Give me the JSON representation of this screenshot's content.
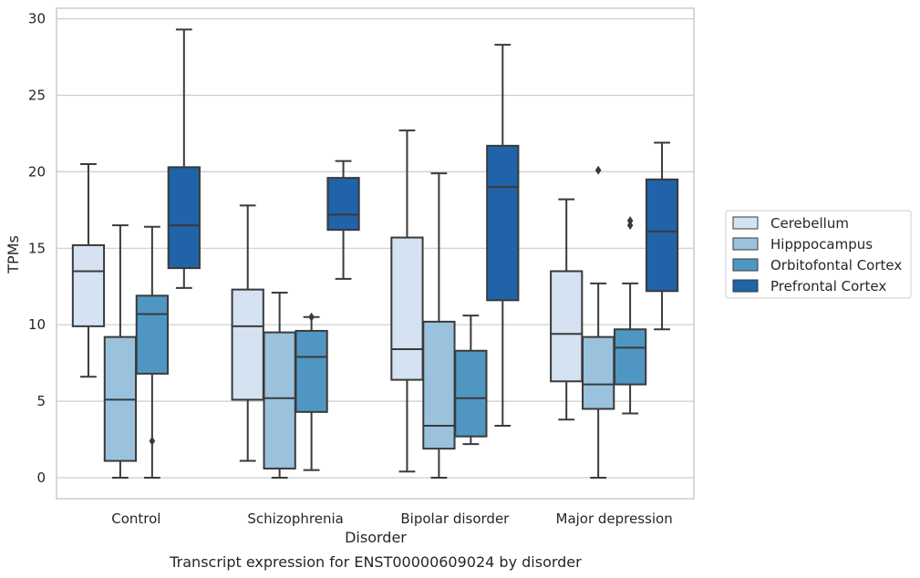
{
  "chart_data": {
    "type": "boxplot",
    "xlabel": "Disorder",
    "ylabel": "TPMs",
    "caption": "Transcript expression for ENST00000609024 by disorder",
    "ylim": [
      -1.4,
      31.0
    ],
    "yticks": [
      0,
      5,
      10,
      15,
      20,
      25,
      30
    ],
    "grid": "horizontal",
    "legend_position": "right-center",
    "categories": [
      "Control",
      "Schizophrenia",
      "Bipolar disorder",
      "Major depression"
    ],
    "series": [
      {
        "name": "Cerebellum",
        "color": "#d4e2f2",
        "boxes": [
          {
            "whislo": 6.6,
            "q1": 9.9,
            "med": 13.5,
            "q3": 15.2,
            "whishi": 20.5,
            "fliers": []
          },
          {
            "whislo": 1.1,
            "q1": 5.1,
            "med": 9.9,
            "q3": 12.3,
            "whishi": 17.8,
            "fliers": []
          },
          {
            "whislo": 0.4,
            "q1": 6.4,
            "med": 8.4,
            "q3": 15.7,
            "whishi": 22.7,
            "fliers": []
          },
          {
            "whislo": 3.8,
            "q1": 6.3,
            "med": 9.4,
            "q3": 13.5,
            "whishi": 18.2,
            "fliers": []
          }
        ]
      },
      {
        "name": "Hipppocampus",
        "color": "#9ac2dc",
        "boxes": [
          {
            "whislo": 0.0,
            "q1": 1.1,
            "med": 5.1,
            "q3": 9.2,
            "whishi": 16.5,
            "fliers": []
          },
          {
            "whislo": 0.0,
            "q1": 0.6,
            "med": 5.2,
            "q3": 9.5,
            "whishi": 12.1,
            "fliers": []
          },
          {
            "whislo": 0.0,
            "q1": 1.9,
            "med": 3.4,
            "q3": 10.2,
            "whishi": 19.9,
            "fliers": []
          },
          {
            "whislo": 0.0,
            "q1": 4.5,
            "med": 6.1,
            "q3": 9.2,
            "whishi": 12.7,
            "fliers": [
              20.1
            ]
          }
        ]
      },
      {
        "name": "Orbitofontal Cortex",
        "color": "#5096c3",
        "boxes": [
          {
            "whislo": 0.0,
            "q1": 6.8,
            "med": 10.7,
            "q3": 11.9,
            "whishi": 16.4,
            "fliers": [
              2.4
            ]
          },
          {
            "whislo": 0.5,
            "q1": 4.3,
            "med": 7.9,
            "q3": 9.6,
            "whishi": 10.5,
            "fliers": [
              10.5
            ]
          },
          {
            "whislo": 2.2,
            "q1": 2.7,
            "med": 5.2,
            "q3": 8.3,
            "whishi": 10.6,
            "fliers": []
          },
          {
            "whislo": 4.2,
            "q1": 6.1,
            "med": 8.5,
            "q3": 9.7,
            "whishi": 12.7,
            "fliers": [
              16.5,
              16.8
            ]
          }
        ]
      },
      {
        "name": "Prefrontal Cortex",
        "color": "#2063a8",
        "boxes": [
          {
            "whislo": 12.4,
            "q1": 13.7,
            "med": 16.5,
            "q3": 20.3,
            "whishi": 29.3,
            "fliers": []
          },
          {
            "whislo": 13.0,
            "q1": 16.2,
            "med": 17.2,
            "q3": 19.6,
            "whishi": 20.7,
            "fliers": []
          },
          {
            "whislo": 3.4,
            "q1": 11.6,
            "med": 19.0,
            "q3": 21.7,
            "whishi": 28.3,
            "fliers": []
          },
          {
            "whislo": 9.7,
            "q1": 12.2,
            "med": 16.1,
            "q3": 19.5,
            "whishi": 21.9,
            "fliers": []
          }
        ]
      }
    ]
  }
}
